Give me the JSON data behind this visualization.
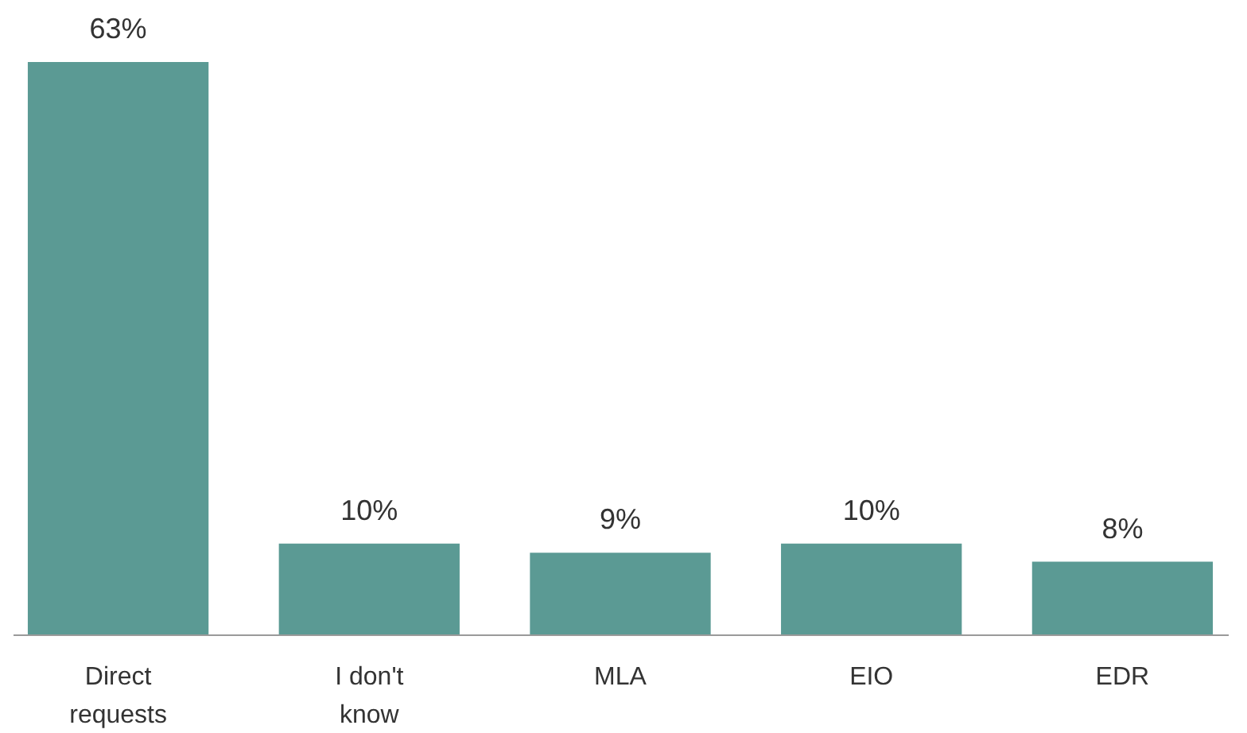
{
  "chart_data": {
    "type": "bar",
    "categories": [
      "Direct requests",
      "I don't know",
      "MLA",
      "EIO",
      "EDR"
    ],
    "values": [
      63,
      10,
      9,
      10,
      8
    ],
    "color": "#5b9a94",
    "value_labels": [
      "63%",
      "10%",
      "9%",
      "10%",
      "8%"
    ],
    "ylim": [
      0,
      63
    ]
  }
}
